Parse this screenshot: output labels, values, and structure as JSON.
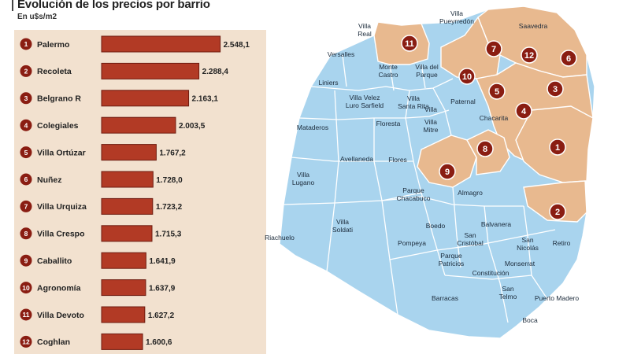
{
  "title": "Evolución de los precios por barrio",
  "subtitle": "En u$s/m2",
  "colors": {
    "bar": "#b23a25",
    "bar_border": "#6e1c10",
    "badge": "#8a1d12",
    "panel": "#f2e1cf",
    "map_blue": "#a9d4ee",
    "map_orange": "#e8b98f",
    "map_line": "#ffffff"
  },
  "chart_data": {
    "type": "bar",
    "orientation": "horizontal",
    "title": "Evolución de los precios por barrio",
    "subtitle": "En u$s/m2",
    "ranks": [
      "1",
      "2",
      "3",
      "4",
      "5",
      "6",
      "7",
      "8",
      "9",
      "10",
      "11",
      "12"
    ],
    "categories": [
      "Palermo",
      "Recoleta",
      "Belgrano R",
      "Colegiales",
      "Villa Ortúzar",
      "Nuñez",
      "Villa Urquiza",
      "Villa Crespo",
      "Caballito",
      "Agronomía",
      "Villa Devoto",
      "Coghlan"
    ],
    "values": [
      2548.1,
      2288.4,
      2163.1,
      2003.5,
      1767.2,
      1728.0,
      1723.2,
      1715.3,
      1641.9,
      1637.9,
      1627.2,
      1600.6
    ],
    "value_labels": [
      "2.548,1",
      "2.288,4",
      "2.163,1",
      "2.003,5",
      "1.767,2",
      "1.728,0",
      "1.723,2",
      "1.715,3",
      "1.641,9",
      "1.637,9",
      "1.627,2",
      "1.600,6"
    ],
    "xlim": [
      1100,
      2600
    ]
  },
  "map": {
    "neighborhoods": [
      "Saavedra",
      "Villa Pueyrredón",
      "Villa Real",
      "Versalles",
      "Monte Castro",
      "Villa del Parque",
      "Liniers",
      "Villa Devoto",
      "Villa Luro",
      "Villa Santa Rita",
      "Mataderos",
      "Paternal",
      "Chacarita",
      "Floresta",
      "Villa Mitre",
      "Avellaneda",
      "Flores",
      "Villa Lugano",
      "Parque Chacabuco",
      "Almagro",
      "Boedo",
      "Balvanera",
      "Villa Soldati",
      "Pompeya",
      "San Cristóbal",
      "San Nicolás",
      "Retiro",
      "Parque Patricios",
      "Monserrat",
      "Constitución",
      "San Telmo",
      "Puerto Madero",
      "Barracas",
      "Boca",
      "Riachuelo"
    ],
    "labels": [
      {
        "id": "saavedra",
        "lines": [
          "Saavedra"
        ]
      },
      {
        "id": "villa-pueyrredon",
        "lines": [
          "Villa",
          "Pueyrredón"
        ]
      },
      {
        "id": "villa-real",
        "lines": [
          "Villa",
          "Real"
        ]
      },
      {
        "id": "versalles",
        "lines": [
          "Versalles"
        ]
      },
      {
        "id": "liniers",
        "lines": [
          "Liniers"
        ]
      },
      {
        "id": "monte-castro",
        "lines": [
          "Monte",
          "Castro"
        ]
      },
      {
        "id": "villa-del-parque",
        "lines": [
          "Villa del",
          "Parque"
        ]
      },
      {
        "id": "villa-velez",
        "lines": [
          "Villa Velez",
          "Luro Sarfield"
        ]
      },
      {
        "id": "villa-santa-rita",
        "lines": [
          "Villa",
          "Santa Rita"
        ]
      },
      {
        "id": "villa",
        "lines": [
          "Villa"
        ]
      },
      {
        "id": "villa-mitre",
        "lines": [
          "Villa",
          "Mitre"
        ]
      },
      {
        "id": "paternal",
        "lines": [
          "Paternal"
        ]
      },
      {
        "id": "chacarita",
        "lines": [
          "Chacarita"
        ]
      },
      {
        "id": "mataderos",
        "lines": [
          "Mataderos"
        ]
      },
      {
        "id": "floresta",
        "lines": [
          "Floresta"
        ]
      },
      {
        "id": "avellaneda",
        "lines": [
          "Avellaneda"
        ]
      },
      {
        "id": "flores",
        "lines": [
          "Flores"
        ]
      },
      {
        "id": "villa-lugano",
        "lines": [
          "Villa",
          "Lugano"
        ]
      },
      {
        "id": "parque-chacabuco",
        "lines": [
          "Parque",
          "Chacabuco"
        ]
      },
      {
        "id": "almagro",
        "lines": [
          "Almagro"
        ]
      },
      {
        "id": "villa-soldati",
        "lines": [
          "Villa",
          "Soldati"
        ]
      },
      {
        "id": "riachuelo",
        "lines": [
          "Riachuelo"
        ]
      },
      {
        "id": "boedo",
        "lines": [
          "Boedo"
        ]
      },
      {
        "id": "balvanera",
        "lines": [
          "Balvanera"
        ]
      },
      {
        "id": "pompeya",
        "lines": [
          "Pompeya"
        ]
      },
      {
        "id": "san-cristobal",
        "lines": [
          "San",
          "Cristóbal"
        ]
      },
      {
        "id": "san-nicolas",
        "lines": [
          "San",
          "Nicolás"
        ]
      },
      {
        "id": "retiro",
        "lines": [
          "Retiro"
        ]
      },
      {
        "id": "parque-patricios",
        "lines": [
          "Parque",
          "Patricios"
        ]
      },
      {
        "id": "monserrat",
        "lines": [
          "Monserrat"
        ]
      },
      {
        "id": "constitucion",
        "lines": [
          "Constitución"
        ]
      },
      {
        "id": "san-telmo",
        "lines": [
          "San",
          "Telmo"
        ]
      },
      {
        "id": "puerto-madero",
        "lines": [
          "Puerto Madero"
        ]
      },
      {
        "id": "barracas",
        "lines": [
          "Barracas"
        ]
      },
      {
        "id": "boca",
        "lines": [
          "Boca"
        ]
      }
    ],
    "markers": [
      {
        "n": "1",
        "barrio": "Palermo"
      },
      {
        "n": "2",
        "barrio": "Recoleta"
      },
      {
        "n": "3",
        "barrio": "Belgrano R"
      },
      {
        "n": "4",
        "barrio": "Colegiales"
      },
      {
        "n": "5",
        "barrio": "Villa Ortúzar"
      },
      {
        "n": "6",
        "barrio": "Nuñez"
      },
      {
        "n": "7",
        "barrio": "Villa Urquiza"
      },
      {
        "n": "8",
        "barrio": "Villa Crespo"
      },
      {
        "n": "9",
        "barrio": "Caballito"
      },
      {
        "n": "10",
        "barrio": "Agronomía"
      },
      {
        "n": "11",
        "barrio": "Villa Devoto"
      },
      {
        "n": "12",
        "barrio": "Coghlan"
      }
    ]
  }
}
